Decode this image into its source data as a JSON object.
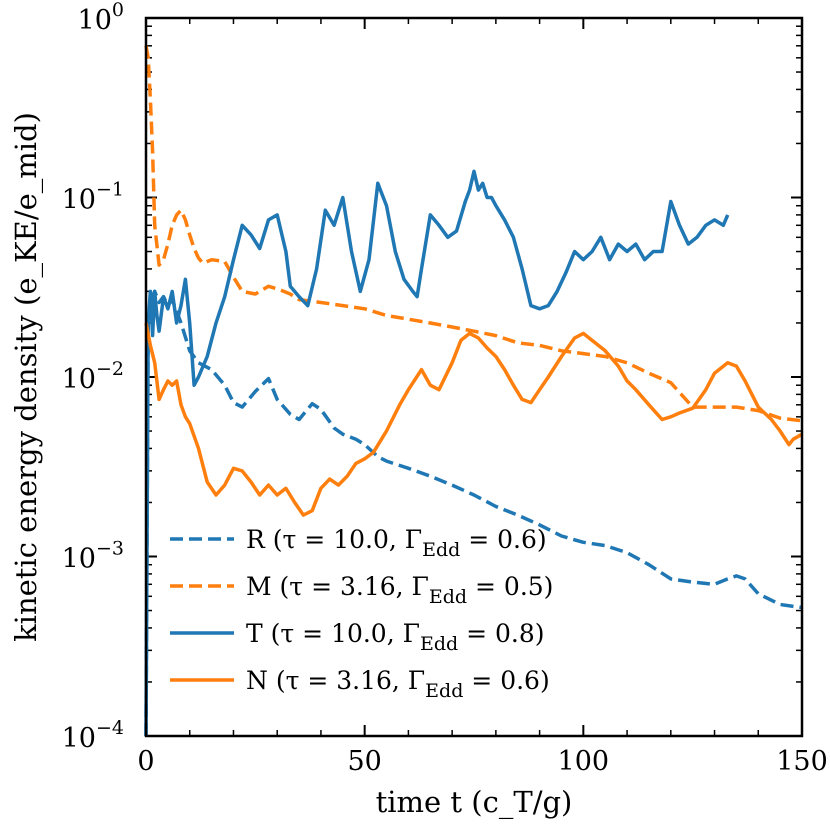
{
  "chart_data": {
    "type": "line",
    "xlabel": "time t (c_T/g)",
    "ylabel": "kinetic energy density (e_KE/e_mid)",
    "xscale": "linear",
    "yscale": "log",
    "xlim": [
      0,
      150
    ],
    "ylim": [
      0.0001,
      1
    ],
    "x_ticks": [
      0,
      50,
      100,
      150
    ],
    "x_tick_labels": [
      "0",
      "50",
      "100",
      "150"
    ],
    "y_ticks": [
      0.0001,
      0.001,
      0.01,
      0.1,
      1
    ],
    "y_tick_labels": [
      {
        "base": "10",
        "exp": "−4"
      },
      {
        "base": "10",
        "exp": "−3"
      },
      {
        "base": "10",
        "exp": "−2"
      },
      {
        "base": "10",
        "exp": "−1"
      },
      {
        "base": "10",
        "exp": "0"
      }
    ],
    "legend_position": "lower-left",
    "series": [
      {
        "name": "R",
        "label": "R (τ = 10.0, Γ",
        "sub": "Edd",
        "label_end": " = 0.6)",
        "color": "#1f77b4",
        "style": "dashed",
        "x": [
          0,
          0.5,
          1,
          1.5,
          2,
          3,
          4,
          5,
          6,
          8,
          10,
          12,
          15,
          18,
          20,
          22,
          25,
          28,
          30,
          33,
          35,
          38,
          40,
          43,
          45,
          48,
          50,
          53,
          55,
          60,
          65,
          70,
          75,
          80,
          85,
          90,
          95,
          100,
          105,
          110,
          115,
          120,
          125,
          130,
          133,
          135,
          137,
          140,
          145,
          150
        ],
        "y": [
          0.0001,
          0.02,
          0.025,
          0.028,
          0.03,
          0.026,
          0.028,
          0.025,
          0.027,
          0.02,
          0.014,
          0.012,
          0.011,
          0.009,
          0.0072,
          0.0068,
          0.0083,
          0.0098,
          0.0075,
          0.0062,
          0.0058,
          0.0071,
          0.0066,
          0.0052,
          0.0048,
          0.0045,
          0.0042,
          0.0036,
          0.0034,
          0.0031,
          0.0028,
          0.0025,
          0.0022,
          0.0019,
          0.0017,
          0.0015,
          0.0013,
          0.0012,
          0.00115,
          0.00105,
          0.0009,
          0.00075,
          0.00072,
          0.0007,
          0.00075,
          0.00078,
          0.00075,
          0.00062,
          0.00054,
          0.00052
        ]
      },
      {
        "name": "M",
        "label": "M (τ = 3.16, Γ",
        "sub": "Edd",
        "label_end": " = 0.5)",
        "color": "#ff7f0e",
        "style": "dashed",
        "x": [
          0,
          0.5,
          1,
          1.5,
          2,
          3,
          4,
          5,
          6,
          7,
          8,
          9,
          10,
          11,
          12,
          13,
          15,
          18,
          20,
          22,
          25,
          28,
          30,
          33,
          35,
          40,
          45,
          50,
          55,
          60,
          65,
          70,
          75,
          80,
          85,
          90,
          95,
          100,
          105,
          110,
          115,
          120,
          125,
          130,
          135,
          140,
          145,
          150
        ],
        "y": [
          0.7,
          0.6,
          0.35,
          0.18,
          0.07,
          0.042,
          0.045,
          0.055,
          0.07,
          0.08,
          0.085,
          0.075,
          0.062,
          0.052,
          0.046,
          0.043,
          0.045,
          0.044,
          0.036,
          0.03,
          0.029,
          0.032,
          0.031,
          0.029,
          0.027,
          0.026,
          0.025,
          0.024,
          0.022,
          0.021,
          0.02,
          0.019,
          0.018,
          0.017,
          0.0155,
          0.015,
          0.014,
          0.0135,
          0.013,
          0.012,
          0.0105,
          0.0093,
          0.0068,
          0.0068,
          0.0068,
          0.0065,
          0.0059,
          0.0057
        ]
      },
      {
        "name": "T",
        "label": "T (τ = 10.0, Γ",
        "sub": "Edd",
        "label_end": " = 0.8)",
        "color": "#1f77b4",
        "style": "solid",
        "x": [
          0,
          0.5,
          1,
          1.5,
          2,
          2.5,
          3,
          4,
          5,
          6,
          7,
          8,
          9,
          10,
          11,
          12,
          14,
          16,
          18,
          20,
          22,
          24,
          26,
          28,
          30,
          32,
          33,
          35,
          37,
          39,
          41,
          43,
          45,
          47,
          49,
          51,
          53,
          55,
          57,
          59,
          61,
          62,
          63,
          65,
          67,
          69,
          71,
          73,
          74,
          75,
          76,
          77,
          78,
          79,
          80,
          82,
          84,
          86,
          88,
          90,
          92,
          94,
          96,
          98,
          100,
          102,
          104,
          106,
          108,
          110,
          112,
          114,
          116,
          118,
          120,
          122,
          124,
          126,
          128,
          130,
          132,
          133
        ],
        "y": [
          0.0001,
          0.02,
          0.03,
          0.017,
          0.03,
          0.022,
          0.018,
          0.028,
          0.024,
          0.03,
          0.02,
          0.025,
          0.035,
          0.02,
          0.009,
          0.01,
          0.013,
          0.02,
          0.028,
          0.045,
          0.07,
          0.062,
          0.052,
          0.075,
          0.08,
          0.05,
          0.032,
          0.028,
          0.025,
          0.04,
          0.085,
          0.07,
          0.1,
          0.05,
          0.03,
          0.045,
          0.12,
          0.09,
          0.05,
          0.035,
          0.03,
          0.028,
          0.04,
          0.08,
          0.07,
          0.06,
          0.065,
          0.095,
          0.11,
          0.14,
          0.11,
          0.12,
          0.1,
          0.1,
          0.09,
          0.075,
          0.06,
          0.04,
          0.025,
          0.024,
          0.025,
          0.03,
          0.038,
          0.05,
          0.045,
          0.05,
          0.06,
          0.045,
          0.055,
          0.05,
          0.055,
          0.045,
          0.05,
          0.05,
          0.095,
          0.07,
          0.055,
          0.06,
          0.07,
          0.075,
          0.07,
          0.08
        ]
      },
      {
        "name": "N",
        "label": "N (τ = 3.16, Γ",
        "sub": "Edd",
        "label_end": " = 0.6)",
        "color": "#ff7f0e",
        "style": "solid",
        "x": [
          0,
          1,
          2,
          3,
          4,
          5,
          6,
          7,
          8,
          9,
          10,
          12,
          14,
          16,
          18,
          20,
          22,
          24,
          26,
          28,
          30,
          32,
          34,
          36,
          38,
          40,
          42,
          44,
          46,
          48,
          50,
          52,
          55,
          58,
          60,
          63,
          65,
          67,
          70,
          72,
          74,
          76,
          78,
          80,
          82,
          84,
          86,
          88,
          90,
          92,
          95,
          98,
          100,
          102,
          105,
          108,
          110,
          112,
          115,
          118,
          120,
          122,
          125,
          128,
          130,
          133,
          135,
          137,
          140,
          143,
          145,
          147,
          148,
          150
        ],
        "y": [
          0.02,
          0.015,
          0.012,
          0.0075,
          0.0085,
          0.0095,
          0.009,
          0.0095,
          0.007,
          0.006,
          0.0055,
          0.004,
          0.0026,
          0.0022,
          0.0025,
          0.0031,
          0.003,
          0.0026,
          0.0022,
          0.0025,
          0.0022,
          0.0024,
          0.002,
          0.0017,
          0.0018,
          0.0024,
          0.0027,
          0.0025,
          0.0028,
          0.0033,
          0.0035,
          0.0038,
          0.005,
          0.007,
          0.0085,
          0.011,
          0.009,
          0.0085,
          0.012,
          0.016,
          0.0175,
          0.0165,
          0.0145,
          0.013,
          0.011,
          0.009,
          0.0075,
          0.0072,
          0.0085,
          0.01,
          0.013,
          0.0165,
          0.0175,
          0.016,
          0.014,
          0.0115,
          0.0095,
          0.0085,
          0.007,
          0.0058,
          0.006,
          0.0063,
          0.0067,
          0.0085,
          0.0105,
          0.012,
          0.0115,
          0.0095,
          0.0068,
          0.0058,
          0.005,
          0.0042,
          0.0045,
          0.0048
        ]
      }
    ]
  }
}
